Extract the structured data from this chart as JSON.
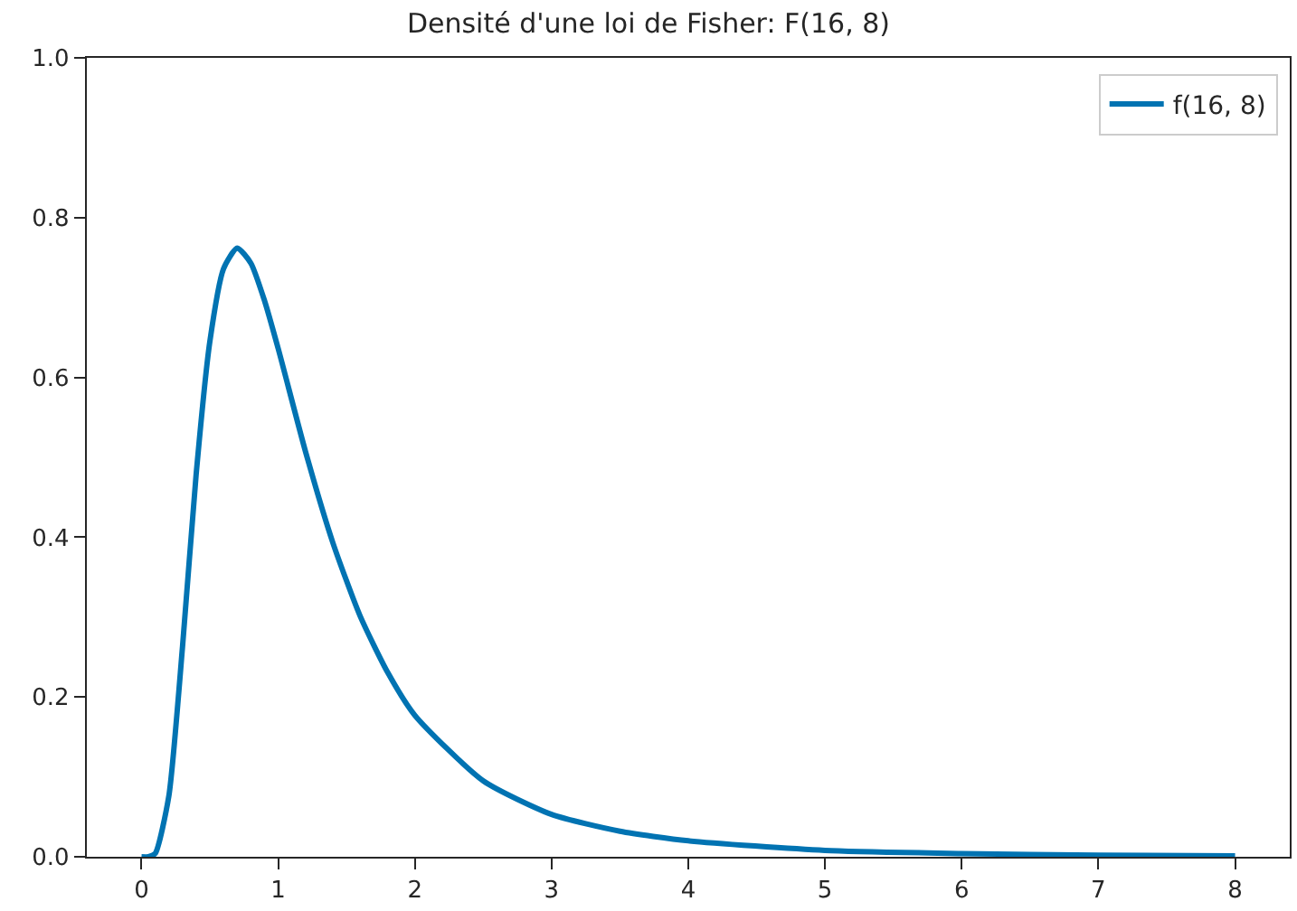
{
  "chart_data": {
    "type": "line",
    "title": "Densité d'une loi de Fisher: F(16, 8)",
    "x": [
      0,
      0.05,
      0.1,
      0.2,
      0.3,
      0.4,
      0.5,
      0.6,
      0.7,
      0.8,
      0.9,
      1.0,
      1.2,
      1.4,
      1.6,
      1.8,
      2.0,
      2.5,
      3.0,
      3.5,
      4.0,
      5.0,
      6.0,
      7.0,
      8.0
    ],
    "series": [
      {
        "name": "f(16, 8)",
        "color": "#0173b2",
        "values": [
          0,
          0,
          0.004,
          0.076,
          0.263,
          0.479,
          0.645,
          0.736,
          0.762,
          0.743,
          0.696,
          0.636,
          0.507,
          0.393,
          0.301,
          0.231,
          0.177,
          0.095,
          0.053,
          0.032,
          0.02,
          0.008,
          0.004,
          0.002,
          0.001
        ]
      }
    ],
    "xlim": [
      -0.4,
      8.4
    ],
    "ylim": [
      0,
      1.0
    ],
    "xticks": [
      0,
      1,
      2,
      3,
      4,
      5,
      6,
      7,
      8
    ],
    "yticks": [
      {
        "value": 0,
        "label": "0.0"
      },
      {
        "value": 0.2,
        "label": "0.2"
      },
      {
        "value": 0.4,
        "label": "0.4"
      },
      {
        "value": 0.6,
        "label": "0.6"
      },
      {
        "value": 0.8,
        "label": "0.8"
      },
      {
        "value": 1.0,
        "label": "1.0"
      }
    ],
    "legend": "top right",
    "marker": "none",
    "line_style": "solid"
  }
}
